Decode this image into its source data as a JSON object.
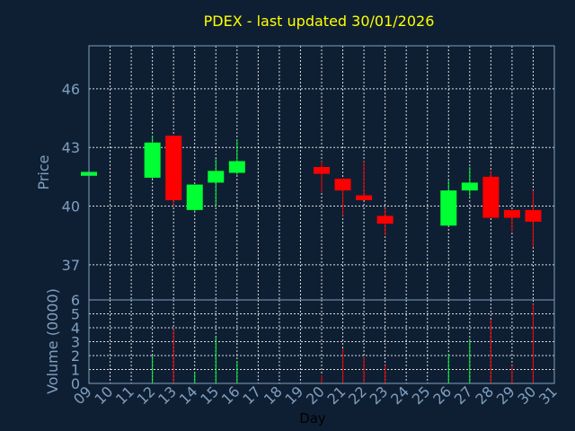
{
  "chart_data": [
    {
      "type": "candlestick",
      "title": "PDEX - last updated 30/01/2026",
      "ylabel": "Price",
      "ylim": [
        35.2,
        48.2
      ],
      "yticks": [
        37,
        40,
        43,
        46
      ],
      "x_days": [
        "09",
        "10",
        "11",
        "12",
        "13",
        "14",
        "15",
        "16",
        "17",
        "18",
        "19",
        "20",
        "21",
        "22",
        "23",
        "24",
        "25",
        "26",
        "27",
        "28",
        "29",
        "30",
        "31"
      ],
      "candles": [
        {
          "day": 9,
          "open": 41.55,
          "close": 41.75,
          "high": 41.75,
          "low": 41.55
        },
        {
          "day": 12,
          "open": 41.45,
          "close": 43.25,
          "high": 43.6,
          "low": 41.4
        },
        {
          "day": 13,
          "open": 43.6,
          "close": 40.3,
          "high": 43.6,
          "low": 40.0
        },
        {
          "day": 14,
          "open": 39.8,
          "close": 41.1,
          "high": 41.1,
          "low": 39.7
        },
        {
          "day": 15,
          "open": 41.2,
          "close": 41.8,
          "high": 42.4,
          "low": 40.0
        },
        {
          "day": 16,
          "open": 41.7,
          "close": 42.3,
          "high": 43.4,
          "low": 41.6
        },
        {
          "day": 20,
          "open": 42.0,
          "close": 41.65,
          "high": 42.3,
          "low": 40.7
        },
        {
          "day": 21,
          "open": 41.4,
          "close": 40.8,
          "high": 41.4,
          "low": 39.5
        },
        {
          "day": 22,
          "open": 40.55,
          "close": 40.3,
          "high": 42.3,
          "low": 40.3
        },
        {
          "day": 23,
          "open": 39.5,
          "close": 39.1,
          "high": 39.9,
          "low": 38.5
        },
        {
          "day": 26,
          "open": 39.0,
          "close": 40.8,
          "high": 41.3,
          "low": 39.0
        },
        {
          "day": 27,
          "open": 40.8,
          "close": 41.2,
          "high": 42.0,
          "low": 40.5
        },
        {
          "day": 28,
          "open": 41.5,
          "close": 39.4,
          "high": 41.8,
          "low": 39.4
        },
        {
          "day": 29,
          "open": 39.8,
          "close": 39.4,
          "high": 39.8,
          "low": 38.7
        },
        {
          "day": 30,
          "open": 39.8,
          "close": 39.2,
          "high": 40.8,
          "low": 37.9
        }
      ],
      "up_color": "#00ff33",
      "down_color": "#ff0000",
      "grid": true
    },
    {
      "type": "bar",
      "ylabel": "Volume (0000)",
      "xlabel": "Day",
      "ylim": [
        0,
        6
      ],
      "yticks": [
        0,
        1,
        2,
        3,
        4,
        5,
        6
      ],
      "bars": [
        {
          "day": 12,
          "value": 2.0,
          "dir": "up"
        },
        {
          "day": 13,
          "value": 3.9,
          "dir": "down"
        },
        {
          "day": 14,
          "value": 0.8,
          "dir": "up"
        },
        {
          "day": 15,
          "value": 3.3,
          "dir": "up"
        },
        {
          "day": 16,
          "value": 1.6,
          "dir": "up"
        },
        {
          "day": 20,
          "value": 0.6,
          "dir": "down"
        },
        {
          "day": 21,
          "value": 2.5,
          "dir": "down"
        },
        {
          "day": 22,
          "value": 1.9,
          "dir": "down"
        },
        {
          "day": 23,
          "value": 1.3,
          "dir": "down"
        },
        {
          "day": 26,
          "value": 2.1,
          "dir": "up"
        },
        {
          "day": 27,
          "value": 3.2,
          "dir": "up"
        },
        {
          "day": 28,
          "value": 4.6,
          "dir": "down"
        },
        {
          "day": 29,
          "value": 1.3,
          "dir": "down"
        },
        {
          "day": 30,
          "value": 5.7,
          "dir": "down"
        }
      ],
      "grid": true
    }
  ]
}
